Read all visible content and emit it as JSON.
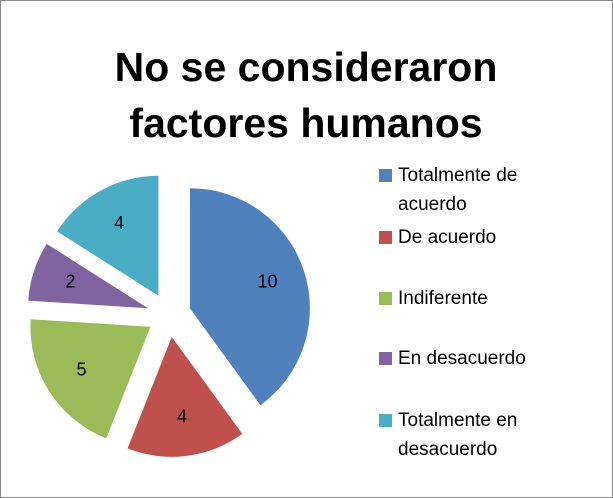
{
  "chart_data": {
    "type": "pie",
    "title": "No se consideraron factores humanos",
    "categories": [
      "Totalmente de acuerdo",
      "De acuerdo",
      "Indiferente",
      "En desacuerdo",
      "Totalmente en desacuerdo"
    ],
    "values": [
      10,
      4,
      5,
      2,
      4
    ],
    "colors": [
      "#4f81bd",
      "#c0504d",
      "#9bbb59",
      "#8064a2",
      "#4bacc6"
    ],
    "legend": "right"
  }
}
